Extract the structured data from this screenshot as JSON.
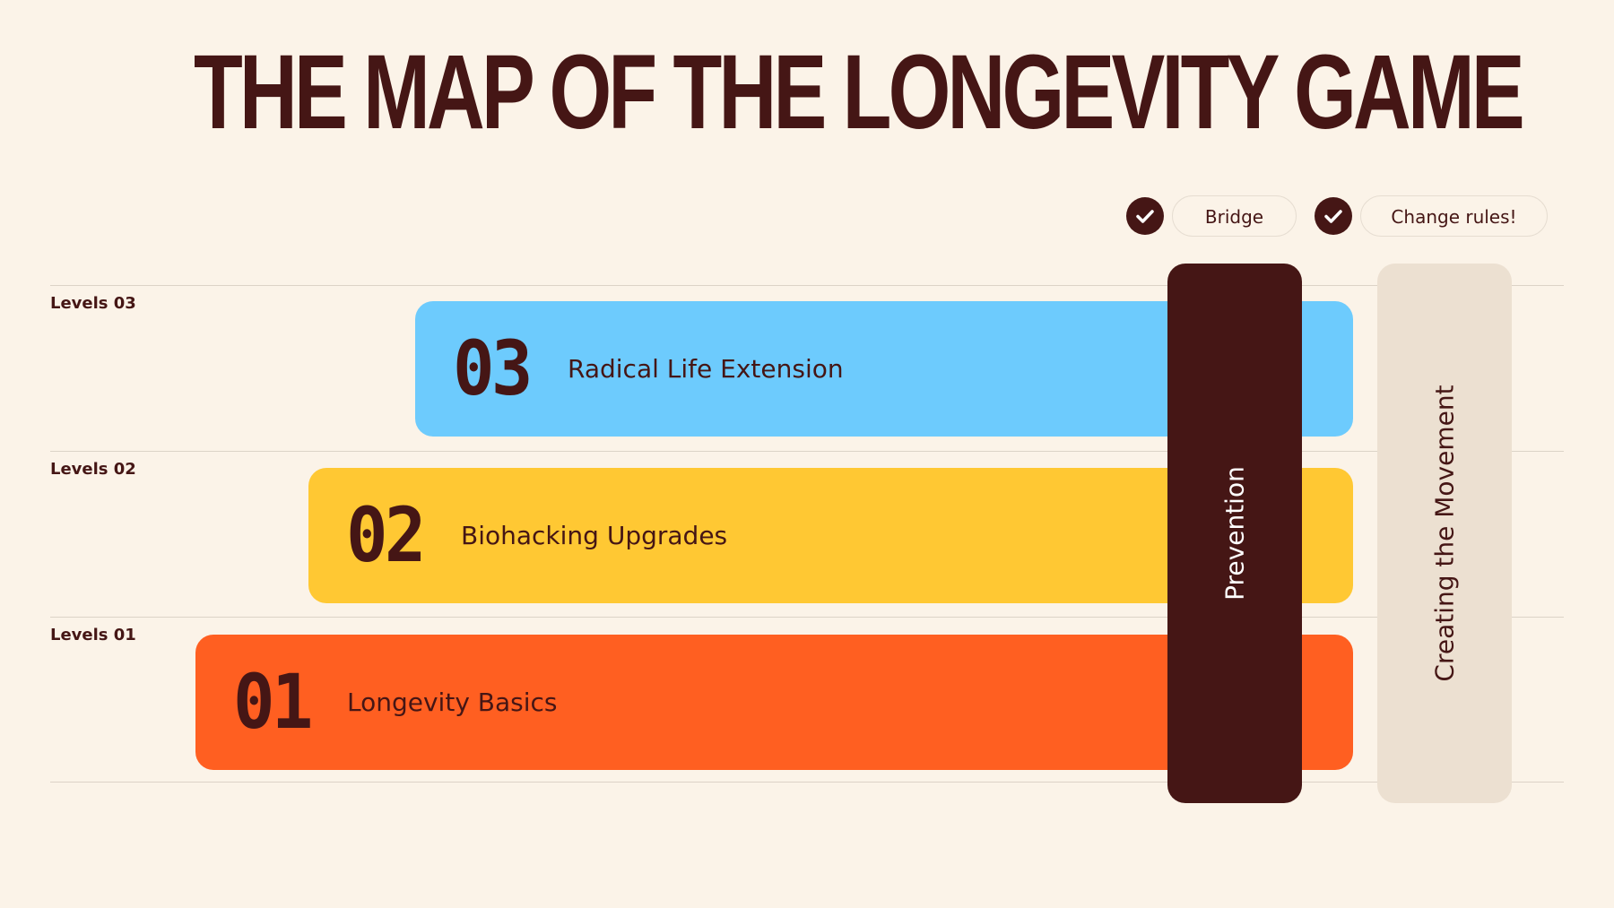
{
  "title": "THE MAP OF THE LONGEVITY GAME",
  "checks": [
    {
      "icon": "check-icon",
      "label": "Bridge"
    },
    {
      "icon": "check-icon",
      "label": "Change rules!"
    }
  ],
  "levels": [
    {
      "label": "Levels 03",
      "number": "03",
      "name": "Radical Life Extension",
      "color": "#6DCBFD"
    },
    {
      "label": "Levels 02",
      "number": "02",
      "name": "Biohacking Upgrades",
      "color": "#FFC833"
    },
    {
      "label": "Levels 01",
      "number": "01",
      "name": "Longevity Basics",
      "color": "#FF5F21"
    }
  ],
  "columns": [
    {
      "label": "Prevention",
      "color": "#451615",
      "text_color": "#FFFFFF"
    },
    {
      "label": "Creating the Movement",
      "color": "#ECE0D1",
      "text_color": "#451615"
    }
  ]
}
